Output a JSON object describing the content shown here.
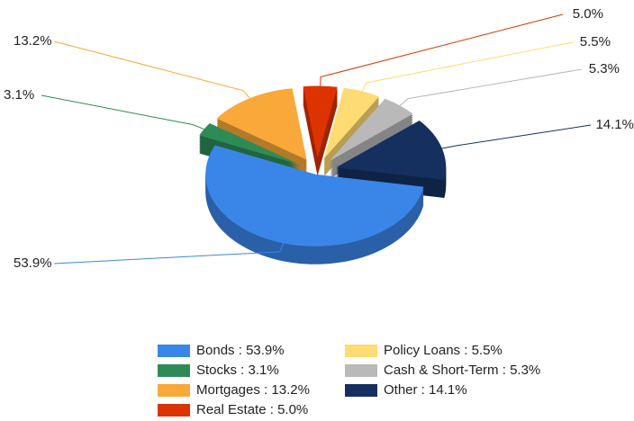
{
  "chart_data": {
    "type": "pie3d",
    "categories": [
      "Bonds",
      "Stocks",
      "Mortgages",
      "Real Estate",
      "Policy Loans",
      "Cash & Short-Term",
      "Other"
    ],
    "values": [
      53.9,
      3.1,
      13.2,
      5.0,
      5.5,
      5.3,
      14.1
    ],
    "value_labels": [
      "53.9%",
      "3.1%",
      "13.2%",
      "5.0%",
      "5.5%",
      "5.3%",
      "14.1%"
    ],
    "colors": [
      "#3a86e8",
      "#2e8b57",
      "#f9a93a",
      "#dd3300",
      "#fedb73",
      "#b9b9b9",
      "#15305f"
    ],
    "legend_separator": " : ",
    "legend": "bottom"
  }
}
